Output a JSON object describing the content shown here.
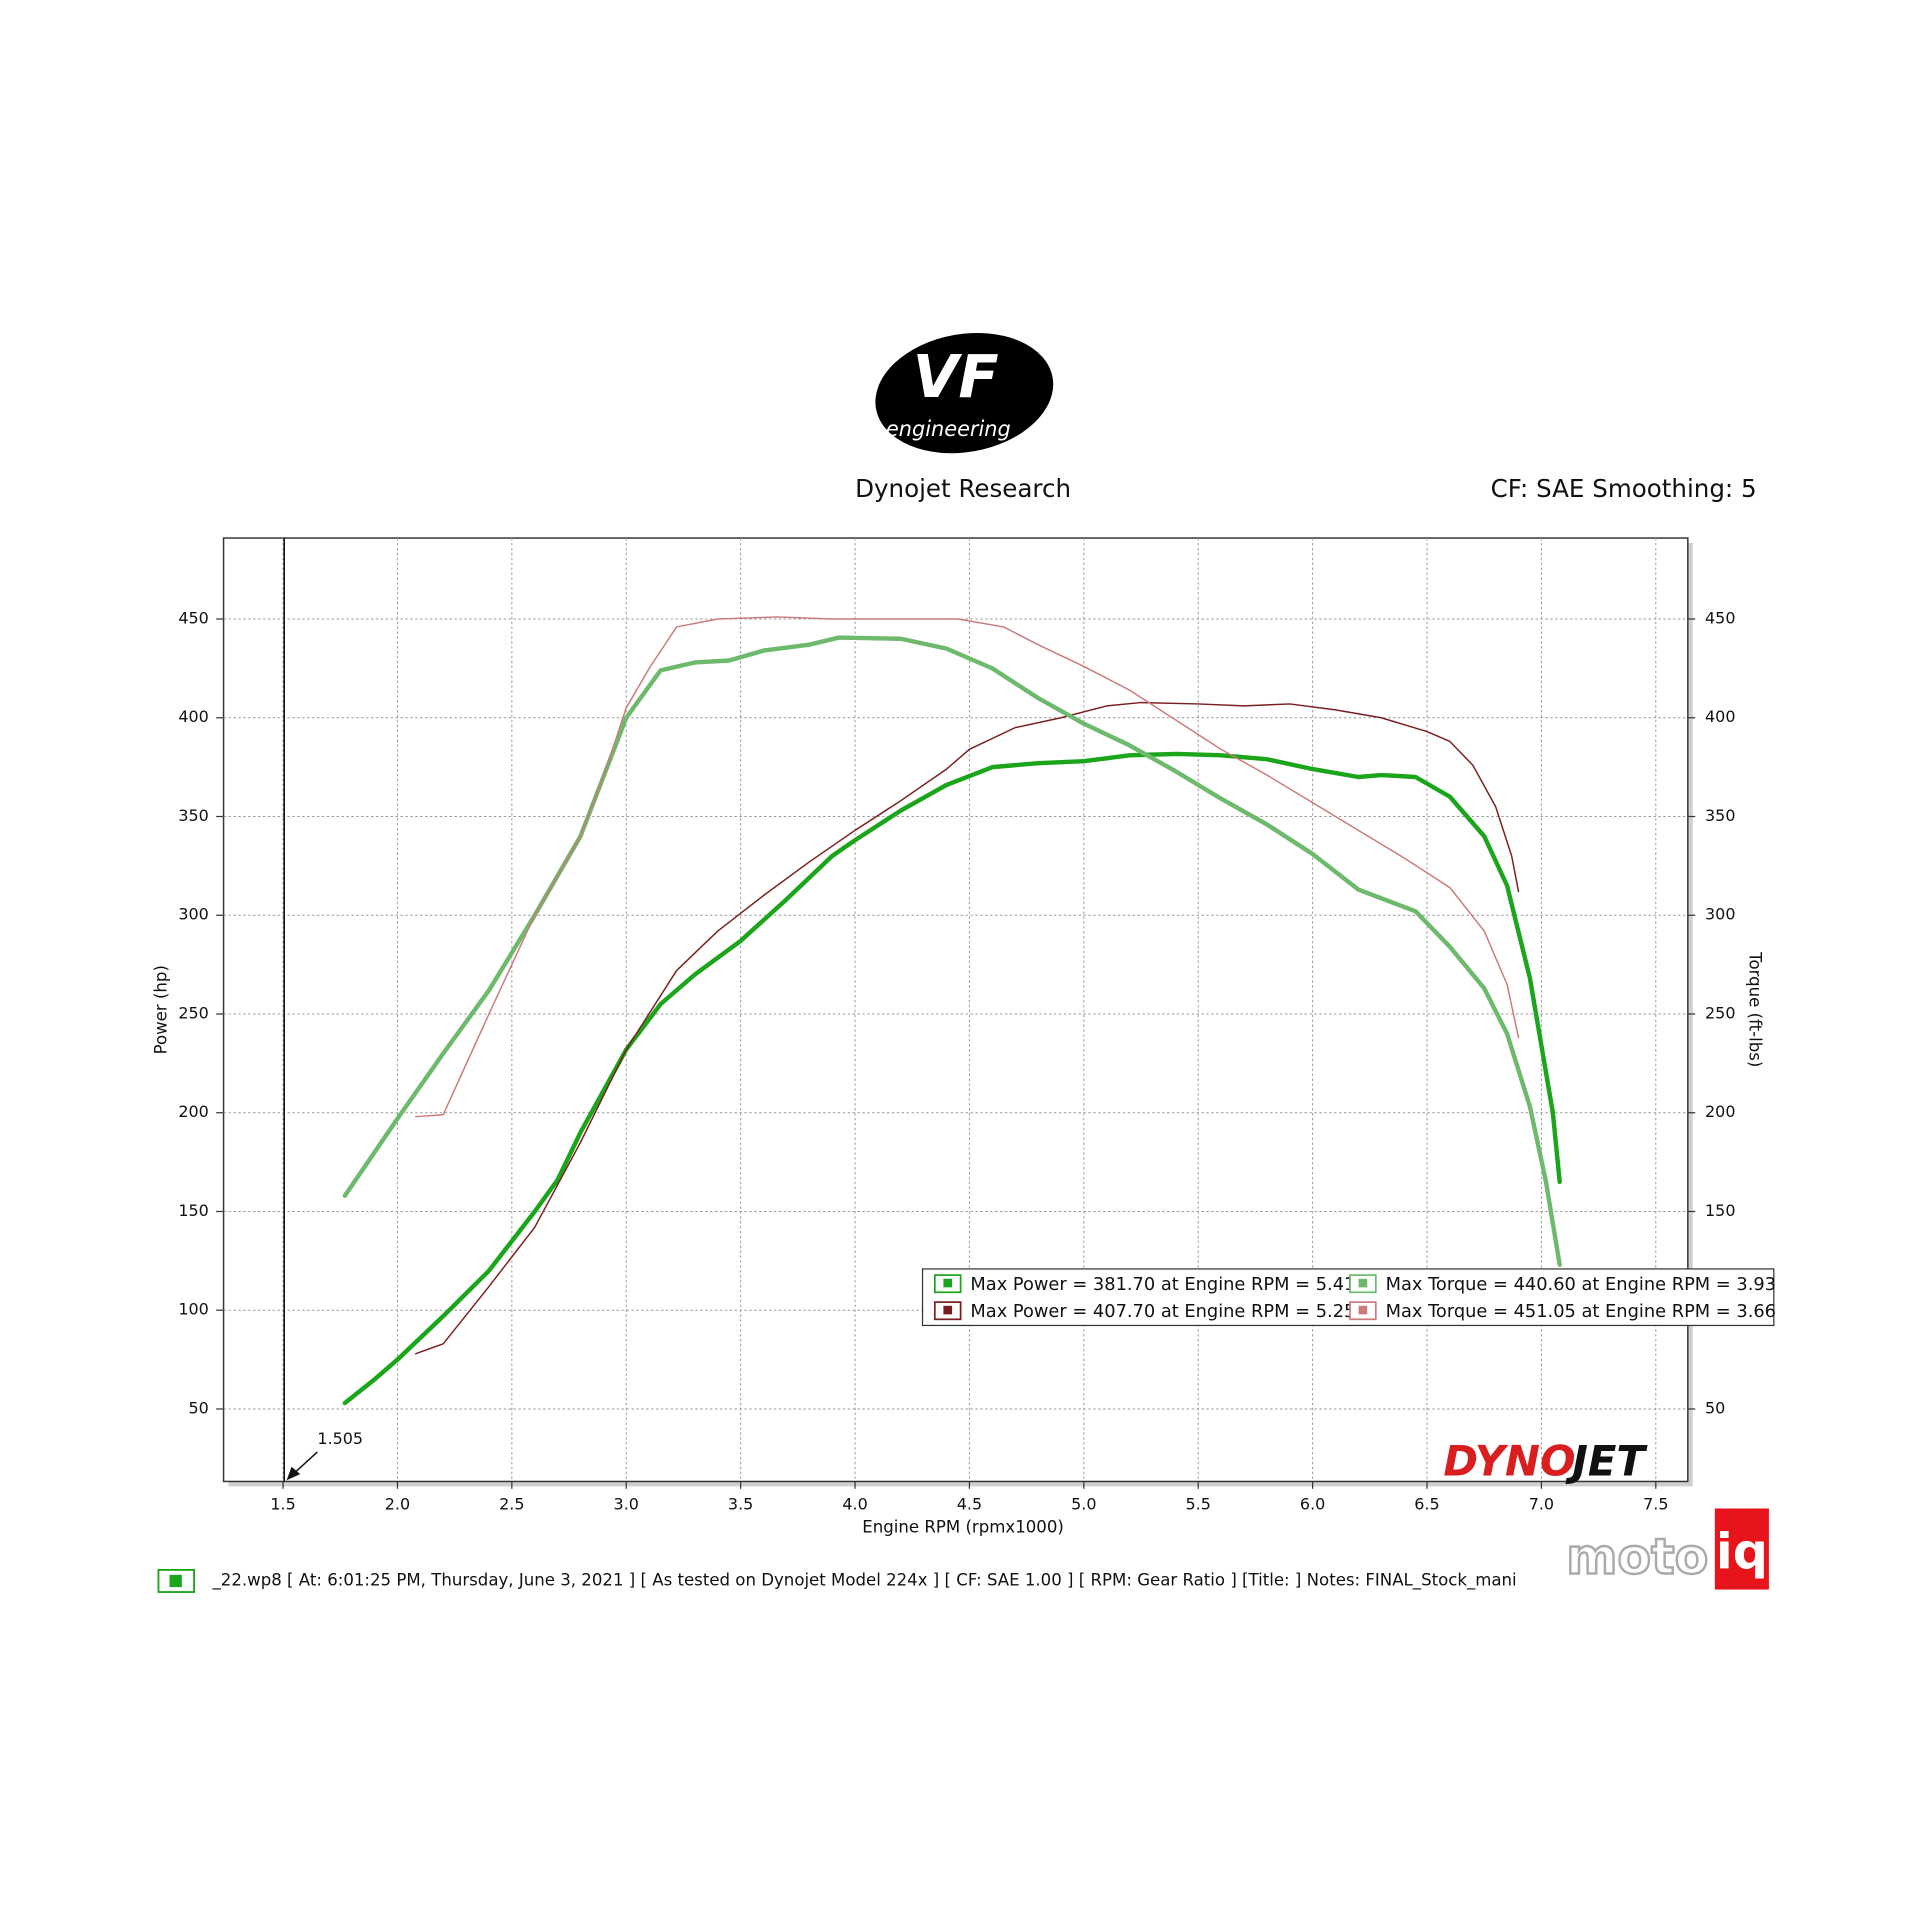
{
  "chart_data": {
    "type": "line",
    "title": "Dynojet Research",
    "subtitle": "CF: SAE Smoothing: 5",
    "x_label": "Engine RPM (rpmx1000)",
    "y_label": "Power (hp)",
    "y2_label": "Torque (ft-lbs)",
    "xlim": [
      1.24,
      7.64
    ],
    "ylim": [
      13.3,
      491
    ],
    "y2lim": [
      13.3,
      491
    ],
    "xticks": [
      1.5,
      {
        "value": 2,
        "label": "2.0"
      },
      2.5,
      {
        "value": 3,
        "label": "3.0"
      },
      3.5,
      {
        "value": 4,
        "label": "4.0"
      },
      4.5,
      {
        "value": 5,
        "label": "5.0"
      },
      5.5,
      {
        "value": 6,
        "label": "6.0"
      },
      6.5,
      {
        "value": 7,
        "label": "7.0"
      },
      7.5
    ],
    "yticks": [
      50,
      100,
      150,
      200,
      250,
      300,
      350,
      400,
      450
    ],
    "y2ticks": [
      50,
      100,
      150,
      200,
      250,
      300,
      350,
      400,
      450
    ],
    "grid": true,
    "legend": "lower right",
    "cursor_x": 1.505,
    "series": [
      {
        "name": "Max Power = 381.70 at Engine RPM = 5.41",
        "color": "#1ba51b",
        "x": [
          1.77,
          1.9,
          2.0,
          2.2,
          2.4,
          2.6,
          2.7,
          2.8,
          3.0,
          3.15,
          3.3,
          3.5,
          3.7,
          3.9,
          4.0,
          4.2,
          4.4,
          4.6,
          4.8,
          5.0,
          5.2,
          5.41,
          5.6,
          5.8,
          6.0,
          6.2,
          6.3,
          6.45,
          6.6,
          6.75,
          6.85,
          6.95,
          7.05,
          7.08
        ],
        "values": [
          53,
          65,
          75,
          97,
          120,
          150,
          166,
          190,
          232,
          255,
          270,
          287,
          308,
          330,
          338,
          353,
          366,
          375,
          377,
          378,
          381,
          381.7,
          381,
          379,
          374,
          370,
          371,
          370,
          360,
          340,
          315,
          268,
          200,
          165
        ]
      },
      {
        "name": "Max Power = 407.70 at Engine RPM = 5.25",
        "color": "#7a1f1f",
        "x": [
          2.08,
          2.2,
          2.4,
          2.6,
          2.8,
          3.0,
          3.22,
          3.4,
          3.6,
          3.8,
          4.0,
          4.2,
          4.4,
          4.5,
          4.7,
          4.9,
          5.1,
          5.25,
          5.5,
          5.7,
          5.9,
          6.1,
          6.3,
          6.5,
          6.6,
          6.7,
          6.8,
          6.87,
          6.9
        ],
        "values": [
          78,
          83,
          112,
          142,
          185,
          232,
          272,
          292,
          310,
          327,
          343,
          358,
          374,
          384,
          395,
          400,
          406,
          407.7,
          407,
          406,
          407,
          404,
          400,
          393,
          388,
          376,
          355,
          330,
          312
        ]
      },
      {
        "name": "Max Torque = 440.60 at Engine RPM = 3.93",
        "color": "#6dba6d",
        "axis": "y2",
        "x": [
          1.77,
          1.9,
          2.0,
          2.2,
          2.4,
          2.6,
          2.8,
          2.9,
          3.0,
          3.15,
          3.3,
          3.45,
          3.6,
          3.8,
          3.93,
          4.2,
          4.4,
          4.6,
          4.8,
          5.0,
          5.2,
          5.4,
          5.6,
          5.8,
          6.0,
          6.2,
          6.45,
          6.6,
          6.75,
          6.85,
          6.95,
          7.02,
          7.08
        ],
        "values": [
          158,
          180,
          197,
          230,
          262,
          300,
          340,
          370,
          400,
          424,
          428,
          429,
          434,
          437,
          440.6,
          440,
          435,
          425,
          410,
          397,
          386,
          373,
          359,
          346,
          331,
          313,
          302,
          284,
          263,
          240,
          203,
          165,
          123
        ]
      },
      {
        "name": "Max Torque = 451.05 at Engine RPM = 3.66",
        "color": "#cc7a7a",
        "axis": "y2",
        "x": [
          2.08,
          2.2,
          2.4,
          2.6,
          2.8,
          2.9,
          3.0,
          3.1,
          3.22,
          3.4,
          3.66,
          3.9,
          4.2,
          4.45,
          4.65,
          4.8,
          5.0,
          5.2,
          5.4,
          5.6,
          5.8,
          6.0,
          6.2,
          6.4,
          6.6,
          6.75,
          6.85,
          6.9
        ],
        "values": [
          198,
          199,
          250,
          300,
          340,
          370,
          405,
          425,
          446,
          450,
          451.05,
          450,
          450,
          450,
          446,
          437,
          426,
          414,
          399,
          384,
          371,
          357,
          343,
          329,
          314,
          292,
          265,
          238
        ]
      }
    ]
  },
  "logos": {
    "vf": "VF",
    "vf_sub": "engineering",
    "dynojet_a": "DYNO",
    "dynojet_b": "JET",
    "motoiq_a": "moto",
    "motoiq_b": "iq"
  },
  "footer": "_22.wp8 [ At: 6:01:25 PM, Thursday, June 3, 2021 ] [ As tested on Dynojet Model 224x ] [ CF: SAE 1.00 ] [ RPM: Gear Ratio ] [Title: ]  Notes: FINAL_Stock_mani"
}
